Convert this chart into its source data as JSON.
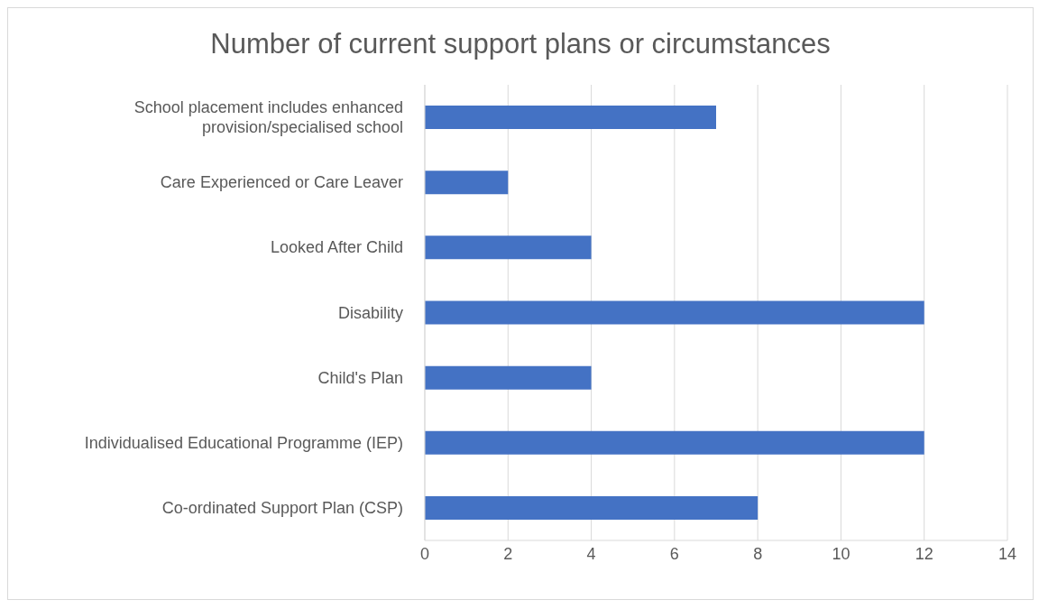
{
  "chart_data": {
    "type": "bar",
    "orientation": "horizontal",
    "title": "Number of current support plans or circumstances",
    "categories": [
      "School placement includes enhanced provision/specialised school",
      "Care Experienced or Care Leaver",
      "Looked After Child",
      "Disability",
      "Child's Plan",
      "Individualised Educational Programme (IEP)",
      "Co-ordinated Support Plan (CSP)"
    ],
    "values": [
      7,
      2,
      4,
      12,
      4,
      12,
      8
    ],
    "color": "#4472c4",
    "xlim": [
      0,
      14
    ],
    "xticks": [
      0,
      2,
      4,
      6,
      8,
      10,
      12,
      14
    ],
    "grid": "x",
    "legend": false
  }
}
